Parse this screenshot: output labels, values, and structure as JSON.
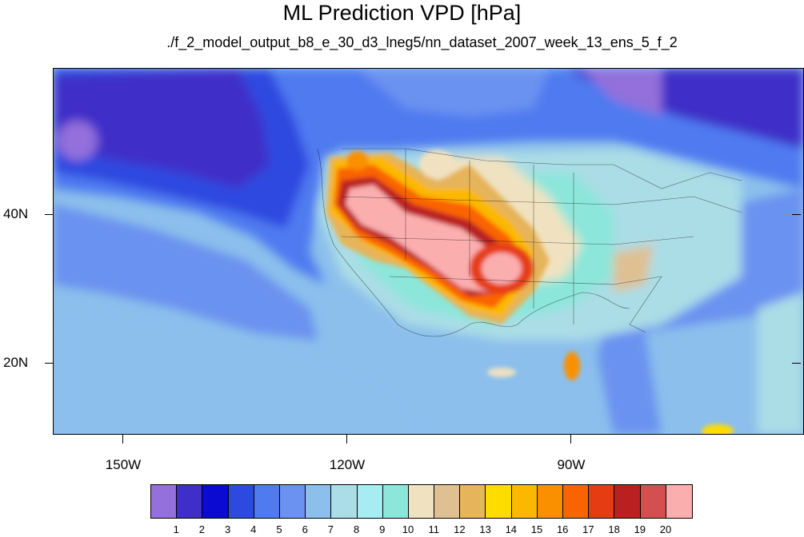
{
  "title": "ML Prediction VPD [hPa]",
  "subtitle": "./f_2_model_output_b8_e_30_d3_lneg5/nn_dataset_2007_week_13_ens_5_f_2",
  "axes": {
    "x_labels": [
      "150W",
      "120W",
      "90W"
    ],
    "y_labels": [
      "40N",
      "20N"
    ]
  },
  "colorbar": {
    "labels": [
      "1",
      "2",
      "3",
      "4",
      "5",
      "6",
      "7",
      "8",
      "9",
      "10",
      "11",
      "12",
      "13",
      "14",
      "15",
      "16",
      "17",
      "18",
      "19",
      "20"
    ],
    "colors": [
      "#9370db",
      "#3f2ec8",
      "#0a0ad2",
      "#2d4ae0",
      "#4f7af0",
      "#6b92f0",
      "#8cbfec",
      "#aadde6",
      "#a6ecf2",
      "#8ce6da",
      "#f0e2c0",
      "#dfc092",
      "#e6b45a",
      "#fedc00",
      "#fcb800",
      "#fa9000",
      "#fa6400",
      "#e63c14",
      "#ba2020",
      "#d25050",
      "#fbaeae"
    ]
  }
}
